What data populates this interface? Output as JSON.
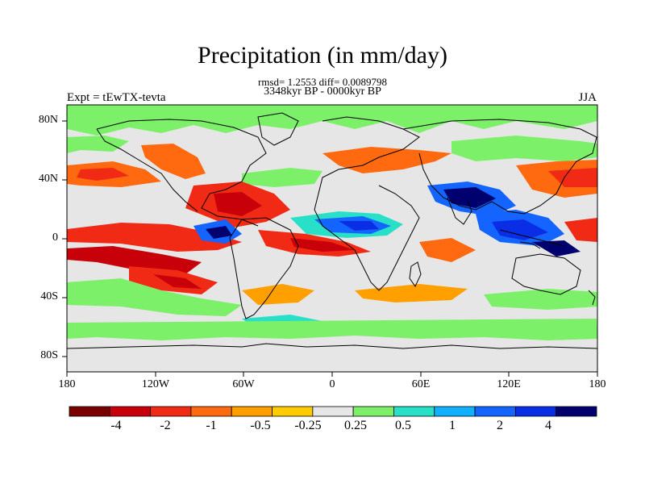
{
  "title": "Precipitation (in mm/day)",
  "stats": "rmsd= 1.2553 diff= 0.0089798",
  "period": "3348kyr BP - 0000kyr BP",
  "experiment": "Expt = tEwTX-tevta",
  "season": "JJA",
  "lat_labels": [
    "80N",
    "40N",
    "0",
    "40S",
    "80S"
  ],
  "lon_labels": [
    "180",
    "120W",
    "60W",
    "0",
    "60E",
    "120E",
    "180"
  ],
  "colorbar": {
    "colors": [
      "#7a0000",
      "#c8000a",
      "#f02a14",
      "#ff6a10",
      "#ffa000",
      "#ffcc00",
      "#e6e6e6",
      "#7df06a",
      "#28e0c8",
      "#10b0ff",
      "#1464ff",
      "#0a2ee6",
      "#00006e"
    ],
    "labels": [
      "-4",
      "-2",
      "-1",
      "-0.5",
      "-0.25",
      "0.25",
      "0.5",
      "1",
      "2",
      "4"
    ]
  },
  "colors": {
    "ocean_neutral": "#e6e6e6",
    "coastline": "#000000"
  }
}
